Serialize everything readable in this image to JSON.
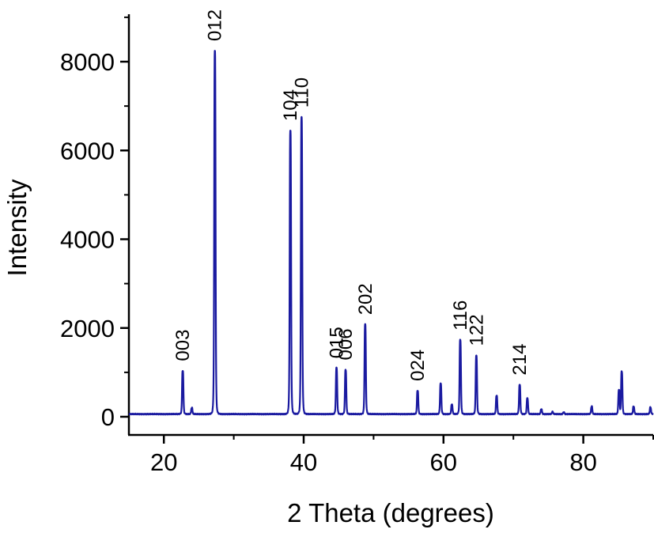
{
  "chart_data": {
    "type": "line",
    "xlabel": "2 Theta (degrees)",
    "ylabel": "Intensity",
    "xlim": [
      15,
      90
    ],
    "ylim": [
      -500,
      9000
    ],
    "x_ticks": [
      20,
      40,
      60,
      80
    ],
    "y_ticks": [
      0,
      2000,
      4000,
      6000,
      8000
    ],
    "grid": false,
    "line_color": "#1a1aa0",
    "series": [
      {
        "peaks": [
          {
            "x": 22.7,
            "y": 1040
          },
          {
            "x": 24.0,
            "y": 200
          },
          {
            "x": 27.3,
            "y": 8250
          },
          {
            "x": 38.1,
            "y": 6450
          },
          {
            "x": 39.7,
            "y": 6750
          },
          {
            "x": 44.7,
            "y": 1100
          },
          {
            "x": 46.0,
            "y": 1060
          },
          {
            "x": 48.8,
            "y": 2080
          },
          {
            "x": 56.3,
            "y": 590
          },
          {
            "x": 59.6,
            "y": 750
          },
          {
            "x": 61.2,
            "y": 280
          },
          {
            "x": 62.4,
            "y": 1730
          },
          {
            "x": 64.7,
            "y": 1380
          },
          {
            "x": 67.6,
            "y": 480
          },
          {
            "x": 70.9,
            "y": 720
          },
          {
            "x": 72.0,
            "y": 420
          },
          {
            "x": 74.0,
            "y": 170
          },
          {
            "x": 75.6,
            "y": 110
          },
          {
            "x": 77.2,
            "y": 100
          },
          {
            "x": 81.2,
            "y": 230
          },
          {
            "x": 85.1,
            "y": 600
          },
          {
            "x": 85.5,
            "y": 1020
          },
          {
            "x": 87.2,
            "y": 230
          },
          {
            "x": 89.6,
            "y": 210
          }
        ],
        "baseline": 60
      }
    ],
    "annotations": [
      {
        "text": "003",
        "x": 22.7,
        "y": 1040
      },
      {
        "text": "012",
        "x": 27.3,
        "y": 8250
      },
      {
        "text": "104",
        "x": 38.1,
        "y": 6450
      },
      {
        "text": "110",
        "x": 39.7,
        "y": 6750
      },
      {
        "text": "015",
        "x": 44.7,
        "y": 1100
      },
      {
        "text": "006",
        "x": 46.0,
        "y": 1060
      },
      {
        "text": "202",
        "x": 48.8,
        "y": 2080
      },
      {
        "text": "024",
        "x": 56.3,
        "y": 590
      },
      {
        "text": "116",
        "x": 62.4,
        "y": 1730
      },
      {
        "text": "122",
        "x": 64.7,
        "y": 1380
      },
      {
        "text": "214",
        "x": 70.9,
        "y": 720
      }
    ]
  }
}
